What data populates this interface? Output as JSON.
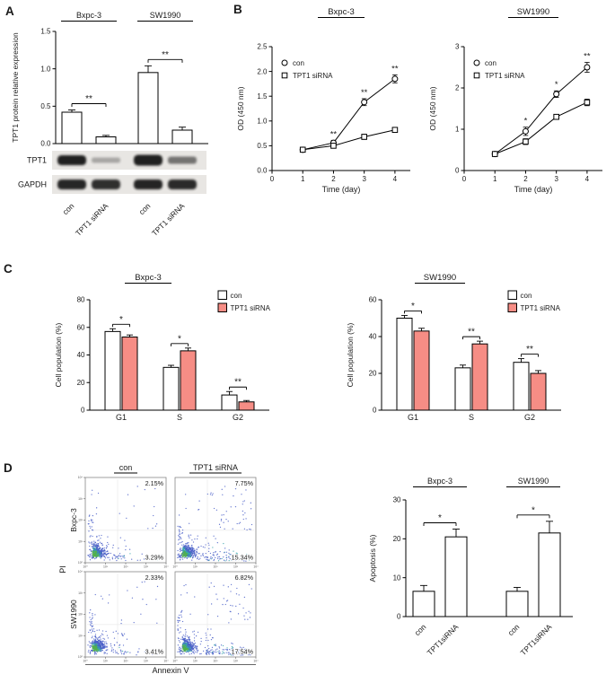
{
  "panels": {
    "a": "A",
    "b": "B",
    "c": "C",
    "d": "D"
  },
  "colors": {
    "sirna_bar_fill": "#f68d85",
    "scatter_blue": "#4a5fc8",
    "scatter_teal": "#37a3ab",
    "scatter_green": "#54b24a"
  },
  "western_blot": {
    "row_labels": [
      "TPT1",
      "GAPDH"
    ],
    "lane_labels": [
      "con",
      "TPT1 siRNA",
      "con",
      "TPT1 siRNA"
    ],
    "band_intensity": [
      [
        0.95,
        0.3,
        0.95,
        0.55
      ],
      [
        0.92,
        0.88,
        0.93,
        0.9
      ]
    ],
    "band_height": [
      [
        11,
        6,
        12,
        8
      ],
      [
        11,
        11,
        11,
        11
      ]
    ]
  },
  "chart_data": [
    {
      "id": "tpt1-protein-expression",
      "type": "bar",
      "panel": "A",
      "ylabel": "TPT1 protein relative expression",
      "group_headers": [
        "Bxpc-3",
        "SW1990"
      ],
      "categories": [
        "con",
        "TPT1 siRNA",
        "con",
        "TPT1 siRNA"
      ],
      "values": [
        0.42,
        0.09,
        0.95,
        0.18
      ],
      "errors": [
        0.03,
        0.02,
        0.09,
        0.04
      ],
      "ylim": [
        0,
        1.5
      ],
      "yticks": [
        0,
        0.5,
        1,
        1.5
      ],
      "ytick_decimals": 1,
      "significance": [
        {
          "a": 0,
          "b": 1,
          "label": "**"
        },
        {
          "a": 2,
          "b": 3,
          "label": "**"
        }
      ]
    },
    {
      "id": "cck8-bxpc3",
      "type": "line",
      "panel": "B",
      "title": "Bxpc-3",
      "xlabel": "Time (day)",
      "ylabel": "OD (450 nm)",
      "x": [
        1,
        2,
        3,
        4
      ],
      "xticks": [
        0,
        1,
        2,
        3,
        4
      ],
      "xlim": [
        0,
        4.5
      ],
      "ylim": [
        0,
        2.5
      ],
      "yticks": [
        0,
        0.5,
        1,
        1.5,
        2,
        2.5
      ],
      "ytick_decimals": 1,
      "series": [
        {
          "name": "con",
          "marker": "circle",
          "values": [
            0.42,
            0.56,
            1.38,
            1.85
          ],
          "errors": [
            0.03,
            0.05,
            0.07,
            0.08
          ]
        },
        {
          "name": "TPT1 siRNA",
          "marker": "square",
          "values": [
            0.42,
            0.5,
            0.68,
            0.82
          ],
          "errors": [
            0.03,
            0.04,
            0.05,
            0.05
          ]
        }
      ],
      "significance": [
        {
          "x": 2,
          "label": "**"
        },
        {
          "x": 3,
          "label": "**"
        },
        {
          "x": 4,
          "label": "**"
        }
      ]
    },
    {
      "id": "cck8-sw1990",
      "type": "line",
      "panel": "B",
      "title": "SW1990",
      "xlabel": "Time (day)",
      "ylabel": "OD (450 nm)",
      "x": [
        1,
        2,
        3,
        4
      ],
      "xticks": [
        0,
        1,
        2,
        3,
        4
      ],
      "xlim": [
        0,
        4.5
      ],
      "ylim": [
        0,
        3
      ],
      "yticks": [
        0,
        1,
        2,
        3
      ],
      "ytick_decimals": 0,
      "series": [
        {
          "name": "con",
          "marker": "circle",
          "values": [
            0.4,
            0.95,
            1.85,
            2.5
          ],
          "errors": [
            0.03,
            0.1,
            0.08,
            0.12
          ]
        },
        {
          "name": "TPT1 siRNA",
          "marker": "square",
          "values": [
            0.4,
            0.7,
            1.3,
            1.65
          ],
          "errors": [
            0.03,
            0.07,
            0.06,
            0.08
          ]
        }
      ],
      "significance": [
        {
          "x": 2,
          "label": "*"
        },
        {
          "x": 3,
          "label": "*"
        },
        {
          "x": 4,
          "label": "**"
        }
      ]
    },
    {
      "id": "cell-cycle-bxpc3",
      "type": "grouped_bar",
      "panel": "C",
      "title": "Bxpc-3",
      "ylabel": "Cell population (%)",
      "categories": [
        "G1",
        "S",
        "G2"
      ],
      "series": [
        {
          "name": "con",
          "values": [
            57,
            31,
            11
          ],
          "errors": [
            2,
            1.5,
            2.5
          ]
        },
        {
          "name": "TPT1 siRNA",
          "values": [
            53,
            43,
            6
          ],
          "errors": [
            1.5,
            2,
            1
          ]
        }
      ],
      "ylim": [
        0,
        80
      ],
      "yticks": [
        0,
        20,
        40,
        60,
        80
      ],
      "significance": [
        {
          "cat": 0,
          "label": "*"
        },
        {
          "cat": 1,
          "label": "*"
        },
        {
          "cat": 2,
          "label": "**"
        }
      ]
    },
    {
      "id": "cell-cycle-sw1990",
      "type": "grouped_bar",
      "panel": "C",
      "title": "SW1990",
      "ylabel": "Cell population (%)",
      "categories": [
        "G1",
        "S",
        "G2"
      ],
      "series": [
        {
          "name": "con",
          "values": [
            50,
            23,
            26
          ],
          "errors": [
            1.5,
            1.5,
            2
          ]
        },
        {
          "name": "TPT1 siRNA",
          "values": [
            43,
            36,
            20
          ],
          "errors": [
            1.5,
            1.5,
            1.5
          ]
        }
      ],
      "ylim": [
        0,
        60
      ],
      "yticks": [
        0,
        20,
        40,
        60
      ],
      "significance": [
        {
          "cat": 0,
          "label": "*"
        },
        {
          "cat": 1,
          "label": "**"
        },
        {
          "cat": 2,
          "label": "**"
        }
      ]
    },
    {
      "id": "apoptosis-flow",
      "type": "scatter_grid",
      "panel": "D",
      "col_headers": [
        "con",
        "TPT1 siRNA"
      ],
      "row_labels": [
        "Bxpc-3",
        "SW1990"
      ],
      "xlabel": "Annexin V",
      "ylabel": "PI",
      "tick_labels": [
        "10⁰",
        "10¹",
        "10²",
        "10³",
        "10⁴"
      ],
      "plots": [
        {
          "row": 0,
          "col": 0,
          "upper_right": "2.15%",
          "lower_right": "3.29%"
        },
        {
          "row": 0,
          "col": 1,
          "upper_right": "7.75%",
          "lower_right": "15.34%"
        },
        {
          "row": 1,
          "col": 0,
          "upper_right": "2.33%",
          "lower_right": "3.41%"
        },
        {
          "row": 1,
          "col": 1,
          "upper_right": "6.82%",
          "lower_right": "17.54%"
        }
      ]
    },
    {
      "id": "apoptosis-quantification",
      "type": "bar",
      "panel": "D",
      "ylabel": "Apoptosis (%)",
      "group_headers": [
        "Bxpc-3",
        "SW1990"
      ],
      "categories": [
        "con",
        "TPT1siRNA",
        "con",
        "TPT1siRNA"
      ],
      "values": [
        6.5,
        20.5,
        6.5,
        21.5
      ],
      "errors": [
        1.5,
        2,
        1,
        3
      ],
      "ylim": [
        0,
        30
      ],
      "yticks": [
        0,
        10,
        20,
        30
      ],
      "ytick_decimals": 0,
      "significance": [
        {
          "a": 0,
          "b": 1,
          "label": "*"
        },
        {
          "a": 2,
          "b": 3,
          "label": "*"
        }
      ]
    }
  ]
}
